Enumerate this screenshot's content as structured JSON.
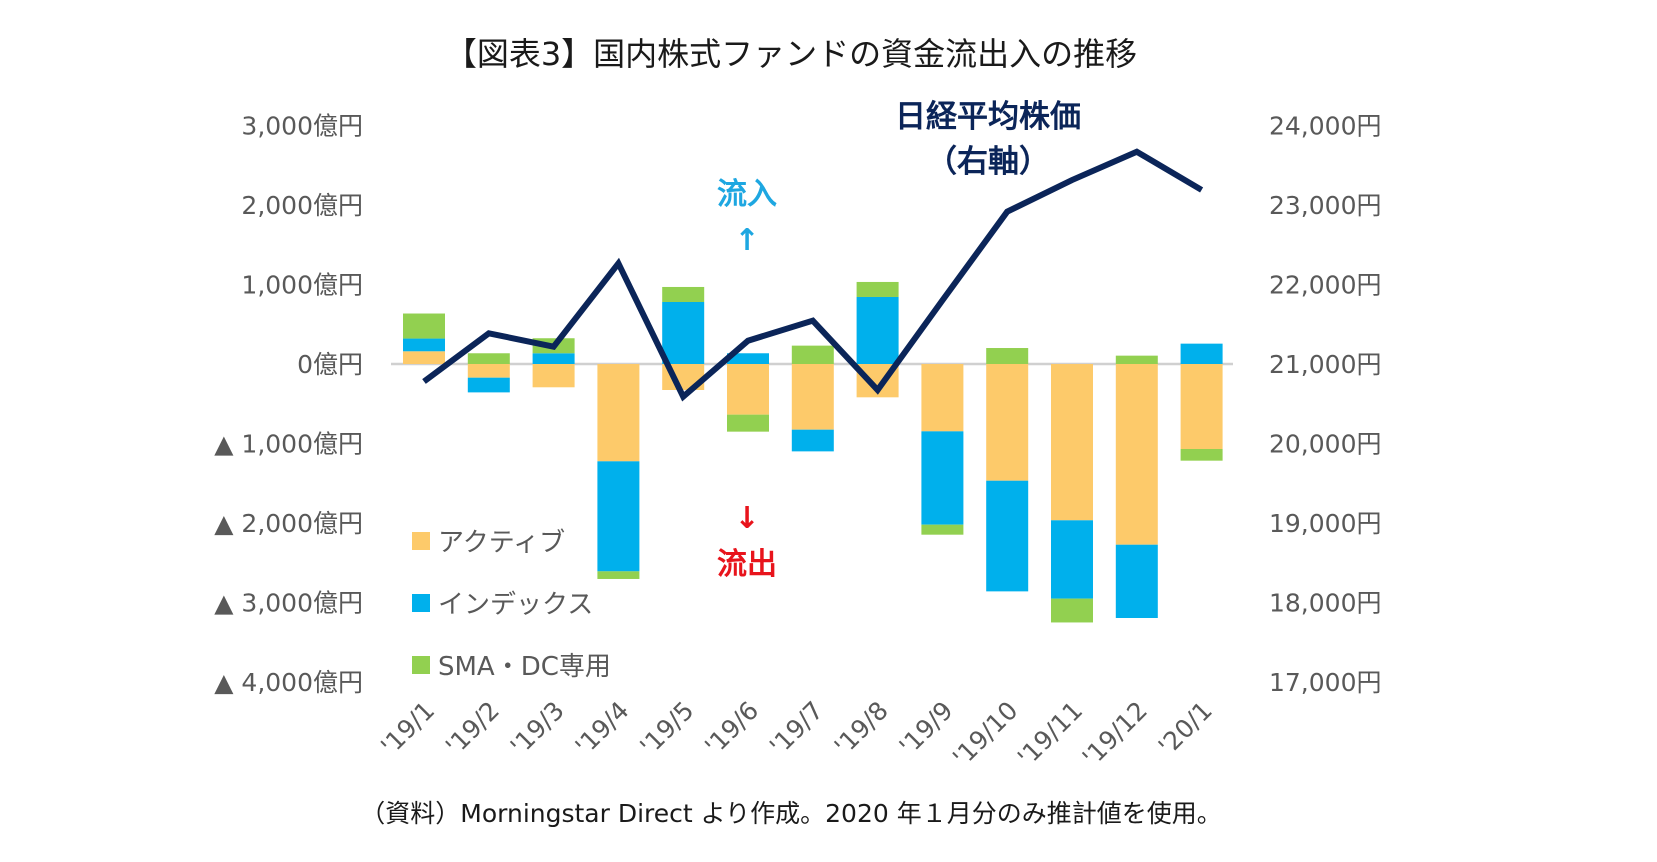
{
  "chart_data": {
    "type": "bar+line",
    "title": "【図表3】国内株式ファンドの資金流出入の推移",
    "categories": [
      "'19/1",
      "'19/2",
      "'19/3",
      "'19/4",
      "'19/5",
      "'19/6",
      "'19/7",
      "'19/8",
      "'19/9",
      "'19/10",
      "'19/11",
      "'19/12",
      "'20/1"
    ],
    "left_axis": {
      "ylim": [
        -4000,
        3000
      ],
      "tick_labels": [
        "3,000億円",
        "2,000億円",
        "1,000億円",
        "0億円",
        "▲ 1,000億円",
        "▲ 2,000億円",
        "▲ 3,000億円",
        "▲ 4,000億円"
      ],
      "ticks": [
        3000,
        2000,
        1000,
        0,
        -1000,
        -2000,
        -3000,
        -4000
      ]
    },
    "right_axis": {
      "ylim": [
        17000,
        24000
      ],
      "tick_labels": [
        "24,000円",
        "23,000円",
        "22,000円",
        "21,000円",
        "20,000円",
        "19,000円",
        "18,000円",
        "17,000円"
      ],
      "ticks": [
        24000,
        23000,
        22000,
        21000,
        20000,
        19000,
        18000,
        17000
      ]
    },
    "series": [
      {
        "name": "アクティブ",
        "type": "bar",
        "color": "#fdca6a",
        "values": [
          160,
          -172,
          -293,
          -1224,
          -327,
          -637,
          -826,
          -419,
          -847,
          -1468,
          -1966,
          -2273,
          -1069
        ]
      },
      {
        "name": "インデックス",
        "type": "bar",
        "color": "#00b0ec",
        "values": [
          160,
          -185,
          135,
          -1384,
          780,
          135,
          -273,
          843,
          -1174,
          -1392,
          -985,
          -922,
          256
        ]
      },
      {
        "name": "SMA・DC専用",
        "type": "bar",
        "color": "#92d050",
        "values": [
          315,
          135,
          189,
          -96,
          189,
          -214,
          231,
          189,
          -126,
          201,
          -300,
          105,
          -147
        ]
      },
      {
        "name": "日経平均株価（右軸）",
        "type": "line",
        "axis": "right",
        "color": "#0b2559",
        "values": [
          20780,
          21386,
          21218,
          22266,
          20589,
          21293,
          21545,
          20673,
          21800,
          22916,
          23314,
          23670,
          23189
        ]
      }
    ],
    "legend_placement": "bottom-left",
    "grid": false,
    "annotations": {
      "nikkei_label_1": "日経平均株価",
      "nikkei_label_2": "（右軸）",
      "inflow": "流入",
      "inflow_arrow": "↑",
      "outflow": "流出",
      "outflow_arrow": "↓"
    },
    "source_note": "（資料）Morningstar Direct より作成。2020 年１月分のみ推計値を使用。"
  }
}
